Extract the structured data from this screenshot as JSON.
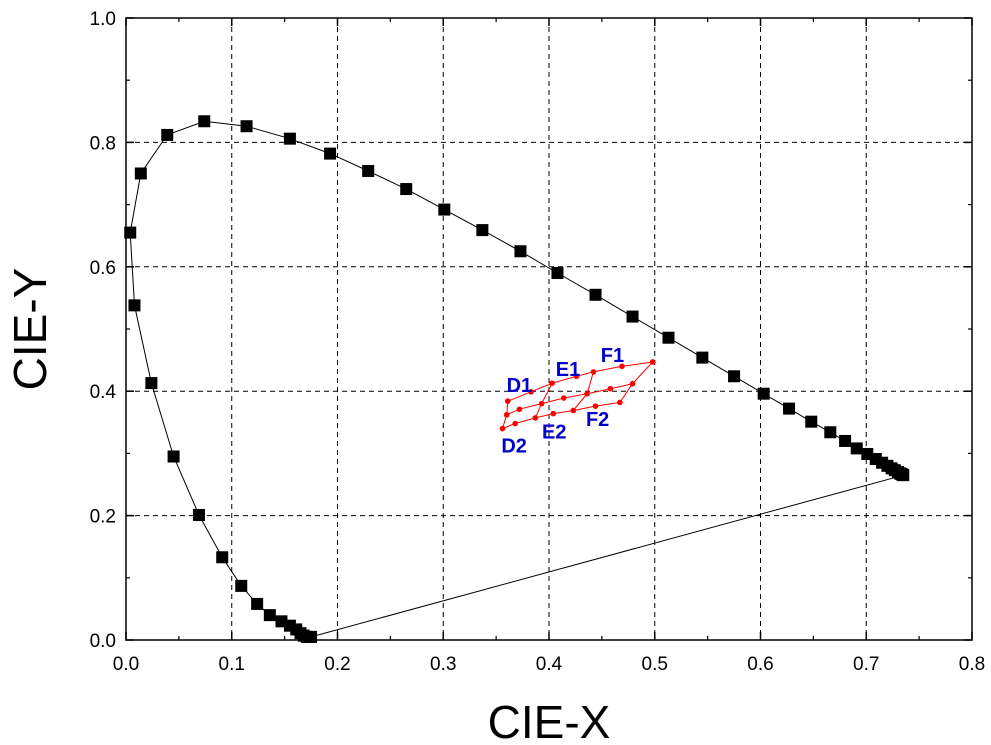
{
  "chart_data": {
    "type": "scatter",
    "xlabel": "CIE-X",
    "ylabel": "CIE-Y",
    "xlim": [
      0.0,
      0.8
    ],
    "ylim": [
      0.0,
      1.0
    ],
    "xticks": [
      "0.0",
      "0.1",
      "0.2",
      "0.3",
      "0.4",
      "0.5",
      "0.6",
      "0.7",
      "0.8"
    ],
    "yticks": [
      "0.0",
      "0.2",
      "0.4",
      "0.6",
      "0.8",
      "1.0"
    ],
    "grid": true,
    "series": [
      {
        "marker": "square",
        "color": "#000000",
        "closed": true,
        "points": [
          [
            0.175,
            0.005
          ],
          [
            0.173,
            0.005
          ],
          [
            0.171,
            0.005
          ],
          [
            0.168,
            0.007
          ],
          [
            0.165,
            0.011
          ],
          [
            0.161,
            0.017
          ],
          [
            0.155,
            0.023
          ],
          [
            0.147,
            0.03
          ],
          [
            0.136,
            0.04
          ],
          [
            0.124,
            0.058
          ],
          [
            0.109,
            0.087
          ],
          [
            0.091,
            0.133
          ],
          [
            0.069,
            0.201
          ],
          [
            0.045,
            0.295
          ],
          [
            0.024,
            0.413
          ],
          [
            0.008,
            0.538
          ],
          [
            0.004,
            0.655
          ],
          [
            0.014,
            0.75
          ],
          [
            0.039,
            0.812
          ],
          [
            0.074,
            0.834
          ],
          [
            0.114,
            0.826
          ],
          [
            0.155,
            0.806
          ],
          [
            0.193,
            0.782
          ],
          [
            0.229,
            0.754
          ],
          [
            0.265,
            0.725
          ],
          [
            0.301,
            0.692
          ],
          [
            0.337,
            0.659
          ],
          [
            0.373,
            0.625
          ],
          [
            0.408,
            0.59
          ],
          [
            0.444,
            0.555
          ],
          [
            0.479,
            0.52
          ],
          [
            0.513,
            0.486
          ],
          [
            0.545,
            0.454
          ],
          [
            0.575,
            0.424
          ],
          [
            0.603,
            0.396
          ],
          [
            0.627,
            0.372
          ],
          [
            0.648,
            0.351
          ],
          [
            0.666,
            0.334
          ],
          [
            0.68,
            0.32
          ],
          [
            0.691,
            0.308
          ],
          [
            0.701,
            0.299
          ],
          [
            0.709,
            0.291
          ],
          [
            0.715,
            0.285
          ],
          [
            0.72,
            0.28
          ],
          [
            0.724,
            0.276
          ],
          [
            0.727,
            0.273
          ],
          [
            0.73,
            0.27
          ],
          [
            0.732,
            0.268
          ],
          [
            0.733,
            0.267
          ],
          [
            0.734,
            0.266
          ],
          [
            0.735,
            0.265
          ]
        ]
      },
      {
        "marker": "dot",
        "color": "#ff0000",
        "grid_points": [
          [
            [
              0.361,
              0.384
            ],
            [
              0.383,
              0.399
            ],
            [
              0.403,
              0.413
            ],
            [
              0.426,
              0.424
            ],
            [
              0.442,
              0.431
            ],
            [
              0.469,
              0.44
            ],
            [
              0.498,
              0.447
            ]
          ],
          [
            [
              0.36,
              0.362
            ],
            [
              0.372,
              0.371
            ],
            [
              0.393,
              0.38
            ],
            [
              0.414,
              0.389
            ],
            [
              0.436,
              0.396
            ],
            [
              0.458,
              0.404
            ],
            [
              0.479,
              0.412
            ]
          ],
          [
            [
              0.356,
              0.34
            ],
            [
              0.368,
              0.348
            ],
            [
              0.387,
              0.357
            ],
            [
              0.404,
              0.364
            ],
            [
              0.423,
              0.369
            ],
            [
              0.444,
              0.376
            ],
            [
              0.467,
              0.382
            ]
          ]
        ]
      }
    ],
    "annotations": [
      {
        "text": "D1",
        "x": 0.372,
        "y": 0.41,
        "color": "#0000cc"
      },
      {
        "text": "E1",
        "x": 0.418,
        "y": 0.436,
        "color": "#0000cc"
      },
      {
        "text": "F1",
        "x": 0.46,
        "y": 0.458,
        "color": "#0000cc"
      },
      {
        "text": "D2",
        "x": 0.367,
        "y": 0.313,
        "color": "#0000cc"
      },
      {
        "text": "E2",
        "x": 0.405,
        "y": 0.335,
        "color": "#0000cc"
      },
      {
        "text": "F2",
        "x": 0.446,
        "y": 0.355,
        "color": "#0000cc"
      }
    ]
  }
}
